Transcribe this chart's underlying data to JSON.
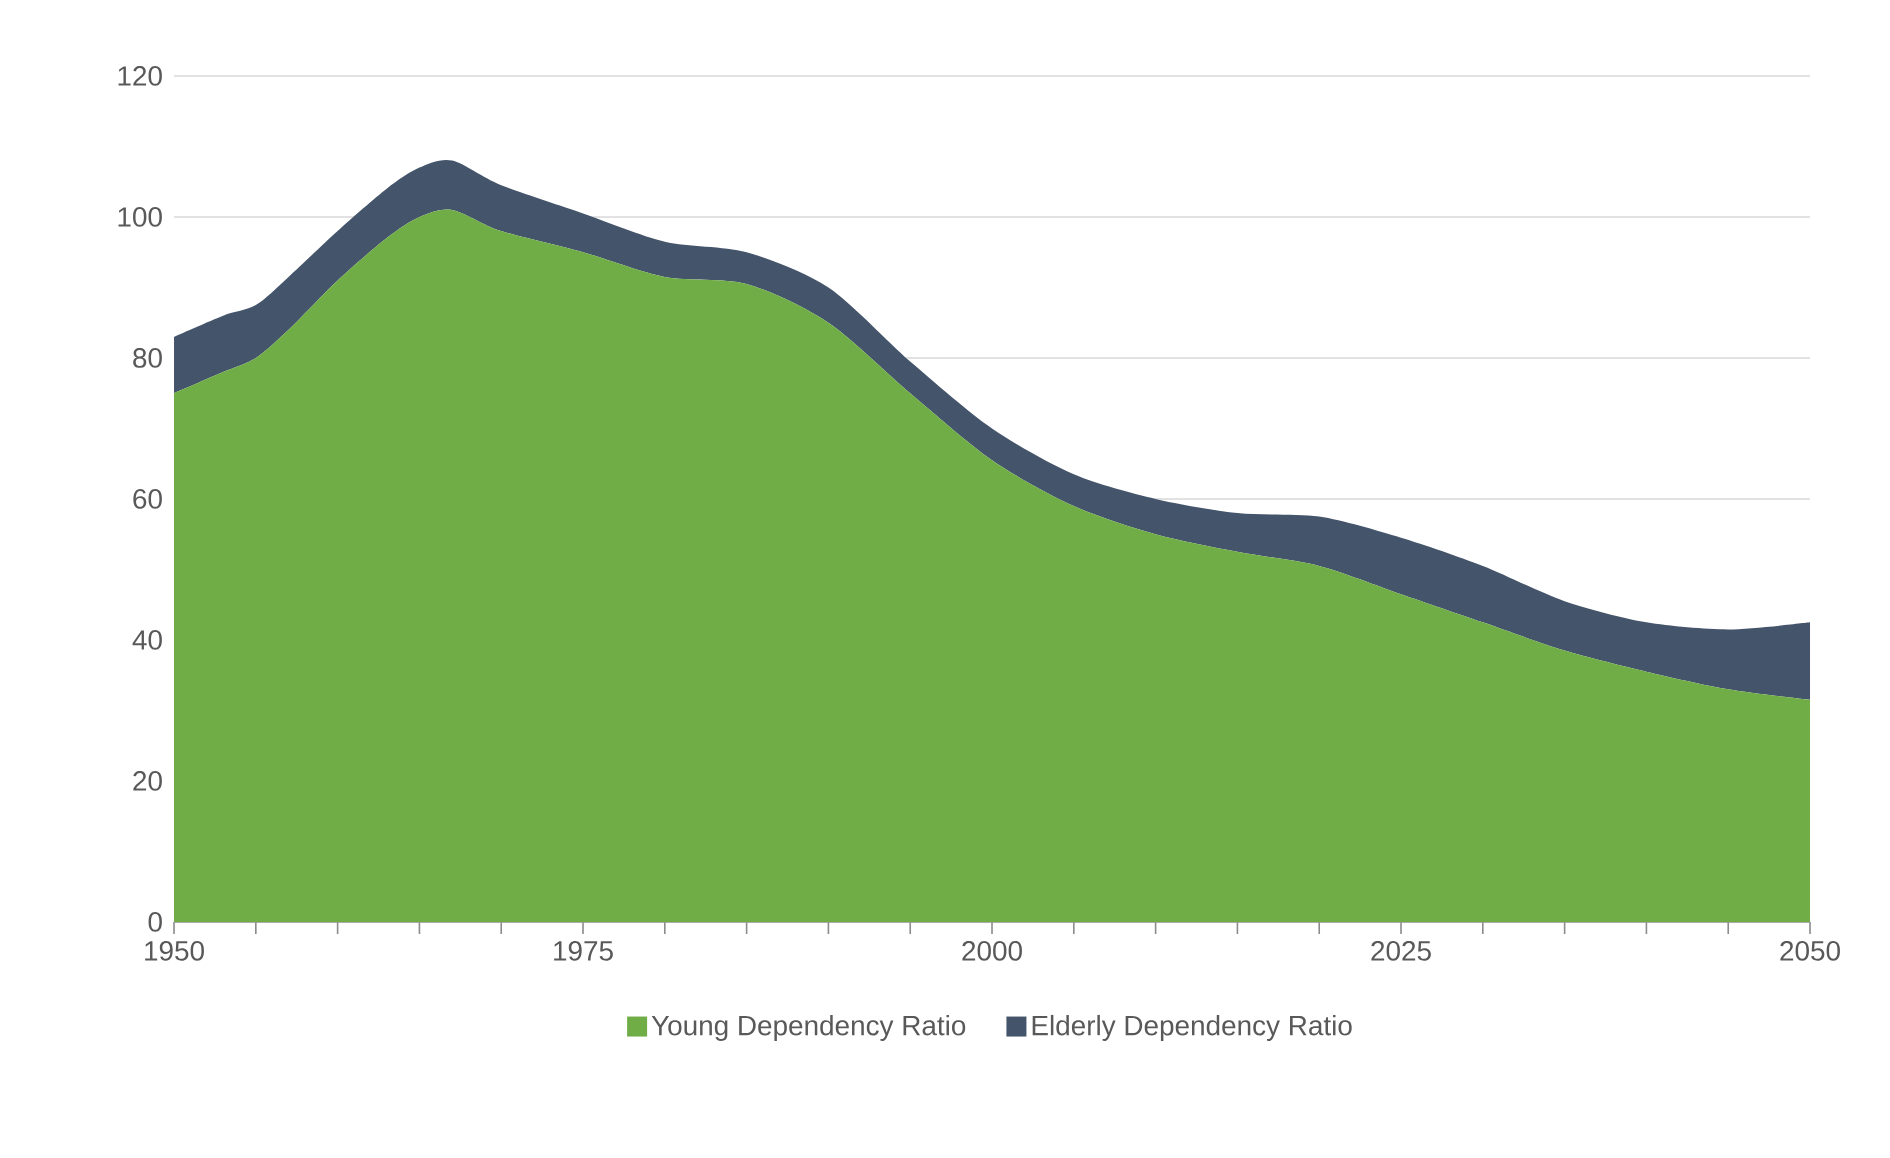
{
  "chart_data": {
    "type": "area",
    "stacked": true,
    "x": [
      1950,
      1953,
      1955,
      1957,
      1960,
      1963,
      1965,
      1967,
      1970,
      1975,
      1980,
      1985,
      1990,
      1995,
      2000,
      2005,
      2010,
      2015,
      2020,
      2025,
      2030,
      2035,
      2040,
      2045,
      2050
    ],
    "series": [
      {
        "name": "Young Dependency Ratio",
        "color": "#70ad47",
        "values": [
          75,
          78,
          80,
          84,
          91,
          97,
          100,
          101,
          98,
          95,
          91.5,
          90.5,
          85,
          75,
          65.5,
          59,
          55,
          52.5,
          50.5,
          46.5,
          42.5,
          38.5,
          35.5,
          33,
          31.5
        ]
      },
      {
        "name": "Elderly Dependency Ratio",
        "color": "#44546a",
        "values": [
          8,
          8,
          7.5,
          7.5,
          7,
          7,
          7,
          7,
          6.5,
          5.5,
          5,
          4.5,
          5,
          4.5,
          4.5,
          4.5,
          5,
          5.5,
          7,
          8,
          8,
          7,
          7,
          8.5,
          11
        ]
      }
    ],
    "xlim": [
      1950,
      2050
    ],
    "xticks": [
      1950,
      {
        "value": 1955,
        "label": null
      },
      {
        "value": 1960,
        "label": null
      },
      {
        "value": 1965,
        "label": null
      },
      {
        "value": 1970,
        "label": null
      },
      1975,
      {
        "value": 1980,
        "label": null
      },
      {
        "value": 1985,
        "label": null
      },
      {
        "value": 1990,
        "label": null
      },
      {
        "value": 1995,
        "label": null
      },
      2000,
      {
        "value": 2005,
        "label": null
      },
      {
        "value": 2010,
        "label": null
      },
      {
        "value": 2015,
        "label": null
      },
      {
        "value": 2020,
        "label": null
      },
      2025,
      {
        "value": 2030,
        "label": null
      },
      {
        "value": 2035,
        "label": null
      },
      {
        "value": 2040,
        "label": null
      },
      {
        "value": 2045,
        "label": null
      },
      2050
    ],
    "ylim": [
      0,
      120
    ],
    "yticks": [
      0,
      20,
      40,
      60,
      80,
      100,
      120
    ],
    "grid": "y",
    "legend": "bottom"
  }
}
